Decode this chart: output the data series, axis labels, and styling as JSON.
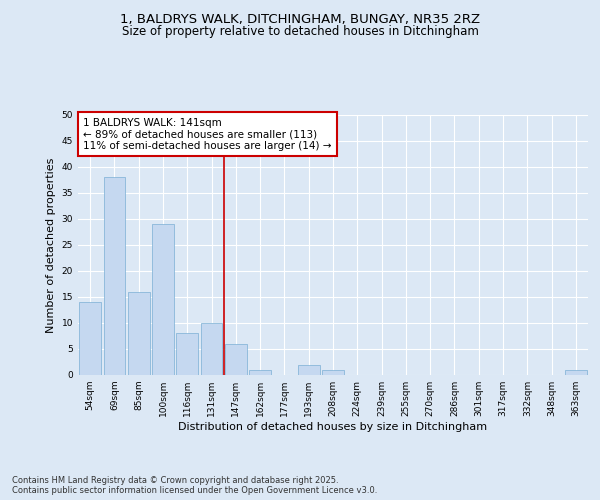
{
  "title1": "1, BALDRYS WALK, DITCHINGHAM, BUNGAY, NR35 2RZ",
  "title2": "Size of property relative to detached houses in Ditchingham",
  "xlabel": "Distribution of detached houses by size in Ditchingham",
  "ylabel": "Number of detached properties",
  "categories": [
    "54sqm",
    "69sqm",
    "85sqm",
    "100sqm",
    "116sqm",
    "131sqm",
    "147sqm",
    "162sqm",
    "177sqm",
    "193sqm",
    "208sqm",
    "224sqm",
    "239sqm",
    "255sqm",
    "270sqm",
    "286sqm",
    "301sqm",
    "317sqm",
    "332sqm",
    "348sqm",
    "363sqm"
  ],
  "values": [
    14,
    38,
    16,
    29,
    8,
    10,
    6,
    1,
    0,
    2,
    1,
    0,
    0,
    0,
    0,
    0,
    0,
    0,
    0,
    0,
    1
  ],
  "bar_color": "#c5d8f0",
  "bar_edge_color": "#7bafd4",
  "vline_index": 6,
  "vline_color": "#cc0000",
  "annotation_text": "1 BALDRYS WALK: 141sqm\n← 89% of detached houses are smaller (113)\n11% of semi-detached houses are larger (14) →",
  "annotation_box_color": "#ffffff",
  "annotation_box_edge": "#cc0000",
  "bg_color": "#dce8f5",
  "plot_bg_color": "#dce8f5",
  "grid_color": "#ffffff",
  "ylim": [
    0,
    50
  ],
  "yticks": [
    0,
    5,
    10,
    15,
    20,
    25,
    30,
    35,
    40,
    45,
    50
  ],
  "footer": "Contains HM Land Registry data © Crown copyright and database right 2025.\nContains public sector information licensed under the Open Government Licence v3.0.",
  "title_fontsize": 9.5,
  "subtitle_fontsize": 8.5,
  "tick_fontsize": 6.5,
  "ylabel_fontsize": 8,
  "xlabel_fontsize": 8,
  "annotation_fontsize": 7.5,
  "footer_fontsize": 6
}
